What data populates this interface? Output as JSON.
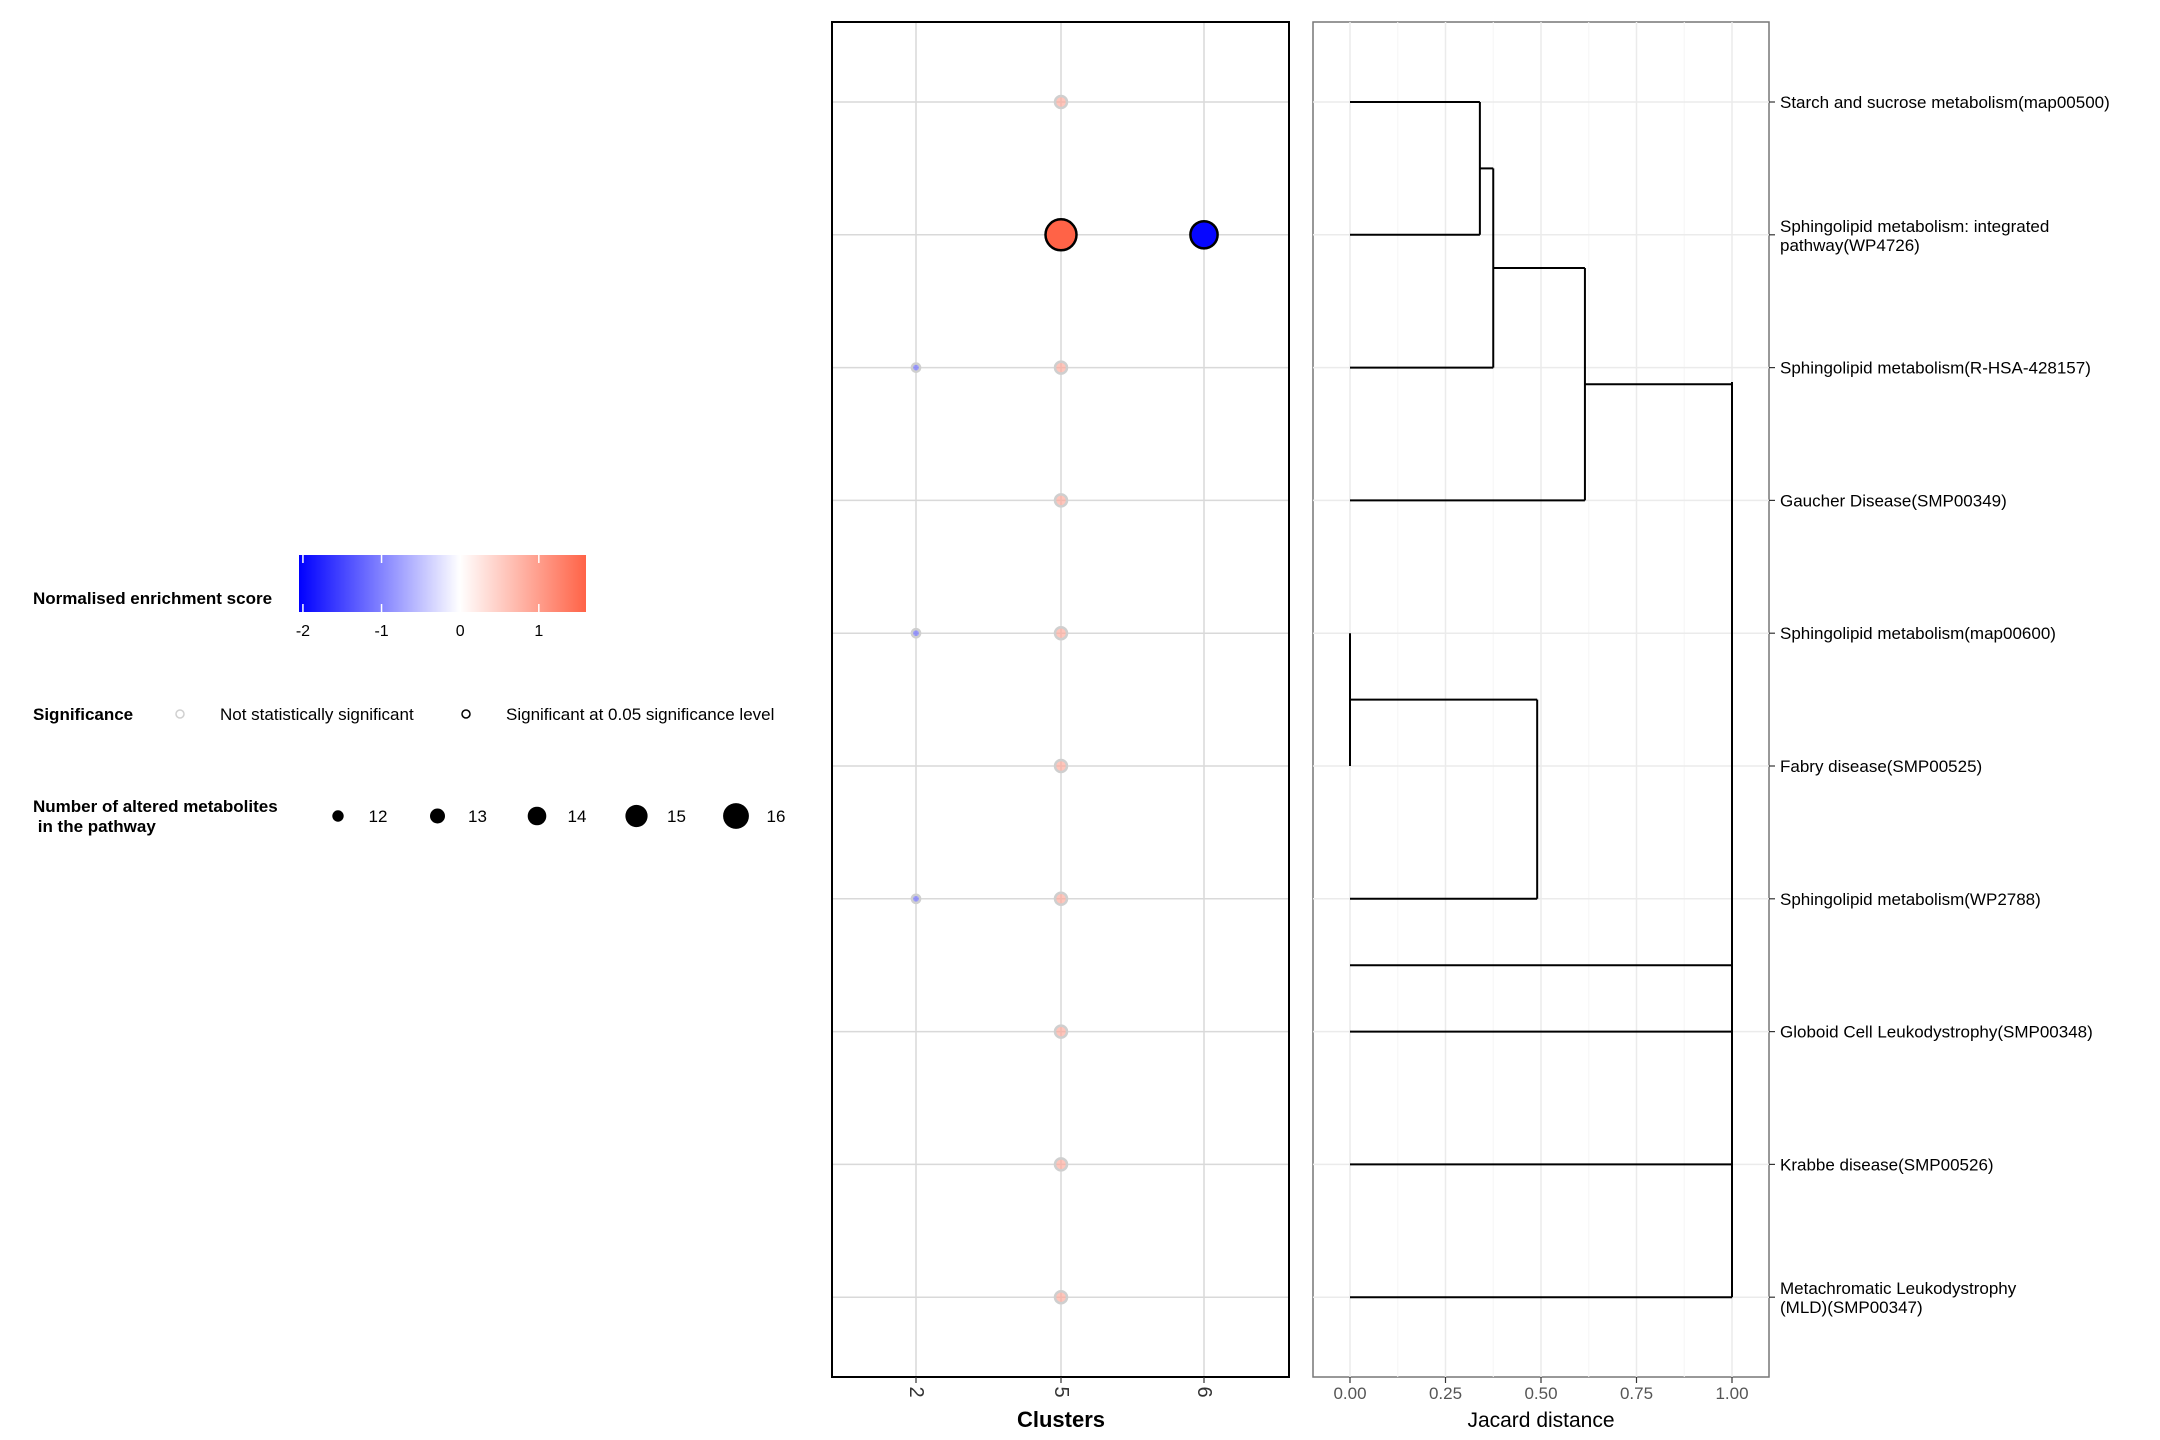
{
  "chart_data": [
    {
      "type": "scatter",
      "subtype": "dot-matrix",
      "xlabel": "Clusters",
      "x_categories": [
        "2",
        "5",
        "6"
      ],
      "rows": [
        "Starch and sucrose metabolism(map00500)",
        "Sphingolipid metabolism: integrated pathway(WP4726)",
        "Sphingolipid metabolism(R-HSA-428157)",
        "Gaucher Disease(SMP00349)",
        "Sphingolipid metabolism(map00600)",
        "Fabry disease(SMP00525)",
        "Sphingolipid metabolism(WP2788)",
        "Globoid Cell Leukodystrophy(SMP00348)",
        "Krabbe disease(SMP00526)",
        "Metachromatic Leukodystrophy (MLD)(SMP00347)"
      ],
      "points": [
        {
          "row": 0,
          "cluster": "5",
          "nes": 0.9,
          "count": 12,
          "significant": false
        },
        {
          "row": 1,
          "cluster": "5",
          "nes": 1.6,
          "count": 17,
          "significant": true
        },
        {
          "row": 1,
          "cluster": "6",
          "nes": -2.0,
          "count": 16,
          "significant": true
        },
        {
          "row": 2,
          "cluster": "2",
          "nes": -1.2,
          "count": 11,
          "significant": false
        },
        {
          "row": 2,
          "cluster": "5",
          "nes": 0.9,
          "count": 12,
          "significant": false
        },
        {
          "row": 3,
          "cluster": "5",
          "nes": 0.9,
          "count": 12,
          "significant": false
        },
        {
          "row": 4,
          "cluster": "2",
          "nes": -1.2,
          "count": 11,
          "significant": false
        },
        {
          "row": 4,
          "cluster": "5",
          "nes": 0.9,
          "count": 12,
          "significant": false
        },
        {
          "row": 5,
          "cluster": "5",
          "nes": 0.9,
          "count": 12,
          "significant": false
        },
        {
          "row": 6,
          "cluster": "2",
          "nes": -1.2,
          "count": 11,
          "significant": false
        },
        {
          "row": 6,
          "cluster": "5",
          "nes": 0.9,
          "count": 12,
          "significant": false
        },
        {
          "row": 7,
          "cluster": "5",
          "nes": 0.9,
          "count": 12,
          "significant": false
        },
        {
          "row": 8,
          "cluster": "5",
          "nes": 0.9,
          "count": 12,
          "significant": false
        },
        {
          "row": 9,
          "cluster": "5",
          "nes": 0.9,
          "count": 12,
          "significant": false
        }
      ],
      "grid": true,
      "legend": {
        "placement": "left",
        "color": {
          "title": "Normalised enrichment score",
          "ticks": [
            "-2",
            "-1",
            "0",
            "1"
          ],
          "range": [
            -2.05,
            1.6
          ],
          "low_color": "#0000FF",
          "mid_color": "#FFFFFF",
          "high_color": "#FF6347"
        },
        "significance": {
          "title": "Significance",
          "items": [
            "Not statistically significant",
            "Significant at 0.05 significance level"
          ]
        },
        "size": {
          "title_line1": "Number of altered metabolites",
          "title_line2": " in the pathway",
          "values": [
            12,
            13,
            14,
            15,
            16
          ],
          "labels": [
            "12",
            "13",
            "14",
            "15",
            "16"
          ]
        }
      }
    },
    {
      "type": "dendrogram",
      "xlabel": "Jacard distance",
      "xlim": [
        0,
        1
      ],
      "x_ticks": [
        "0.00",
        "0.25",
        "0.50",
        "0.75",
        "1.00"
      ],
      "grid": true,
      "merges": [
        {
          "a": [
            0
          ],
          "b": [
            1
          ],
          "height": 0.34
        },
        {
          "a": [
            0,
            1
          ],
          "b": [
            2
          ],
          "height": 0.375
        },
        {
          "a": [
            0,
            1,
            2
          ],
          "b": [
            3
          ],
          "height": 0.615
        },
        {
          "a": [
            4
          ],
          "b": [
            5
          ],
          "height": 0.0
        },
        {
          "a": [
            4,
            5
          ],
          "b": [
            6
          ],
          "height": 0.49
        },
        {
          "a": [
            0,
            1,
            2,
            3
          ],
          "b": [
            4,
            5,
            6,
            7,
            8,
            9
          ],
          "height": 1.0
        }
      ],
      "labels": [
        {
          "line1": "Starch and sucrose metabolism(map00500)",
          "line2": ""
        },
        {
          "line1": "Sphingolipid metabolism: integrated",
          "line2": "pathway(WP4726)"
        },
        {
          "line1": "Sphingolipid metabolism(R-HSA-428157)",
          "line2": ""
        },
        {
          "line1": "Gaucher Disease(SMP00349)",
          "line2": ""
        },
        {
          "line1": "Sphingolipid metabolism(map00600)",
          "line2": ""
        },
        {
          "line1": "Fabry disease(SMP00525)",
          "line2": ""
        },
        {
          "line1": "Sphingolipid metabolism(WP2788)",
          "line2": ""
        },
        {
          "line1": "Globoid Cell Leukodystrophy(SMP00348)",
          "line2": ""
        },
        {
          "line1": "Krabbe disease(SMP00526)",
          "line2": ""
        },
        {
          "line1": "Metachromatic Leukodystrophy",
          "line2": "(MLD)(SMP00347)"
        }
      ]
    }
  ]
}
